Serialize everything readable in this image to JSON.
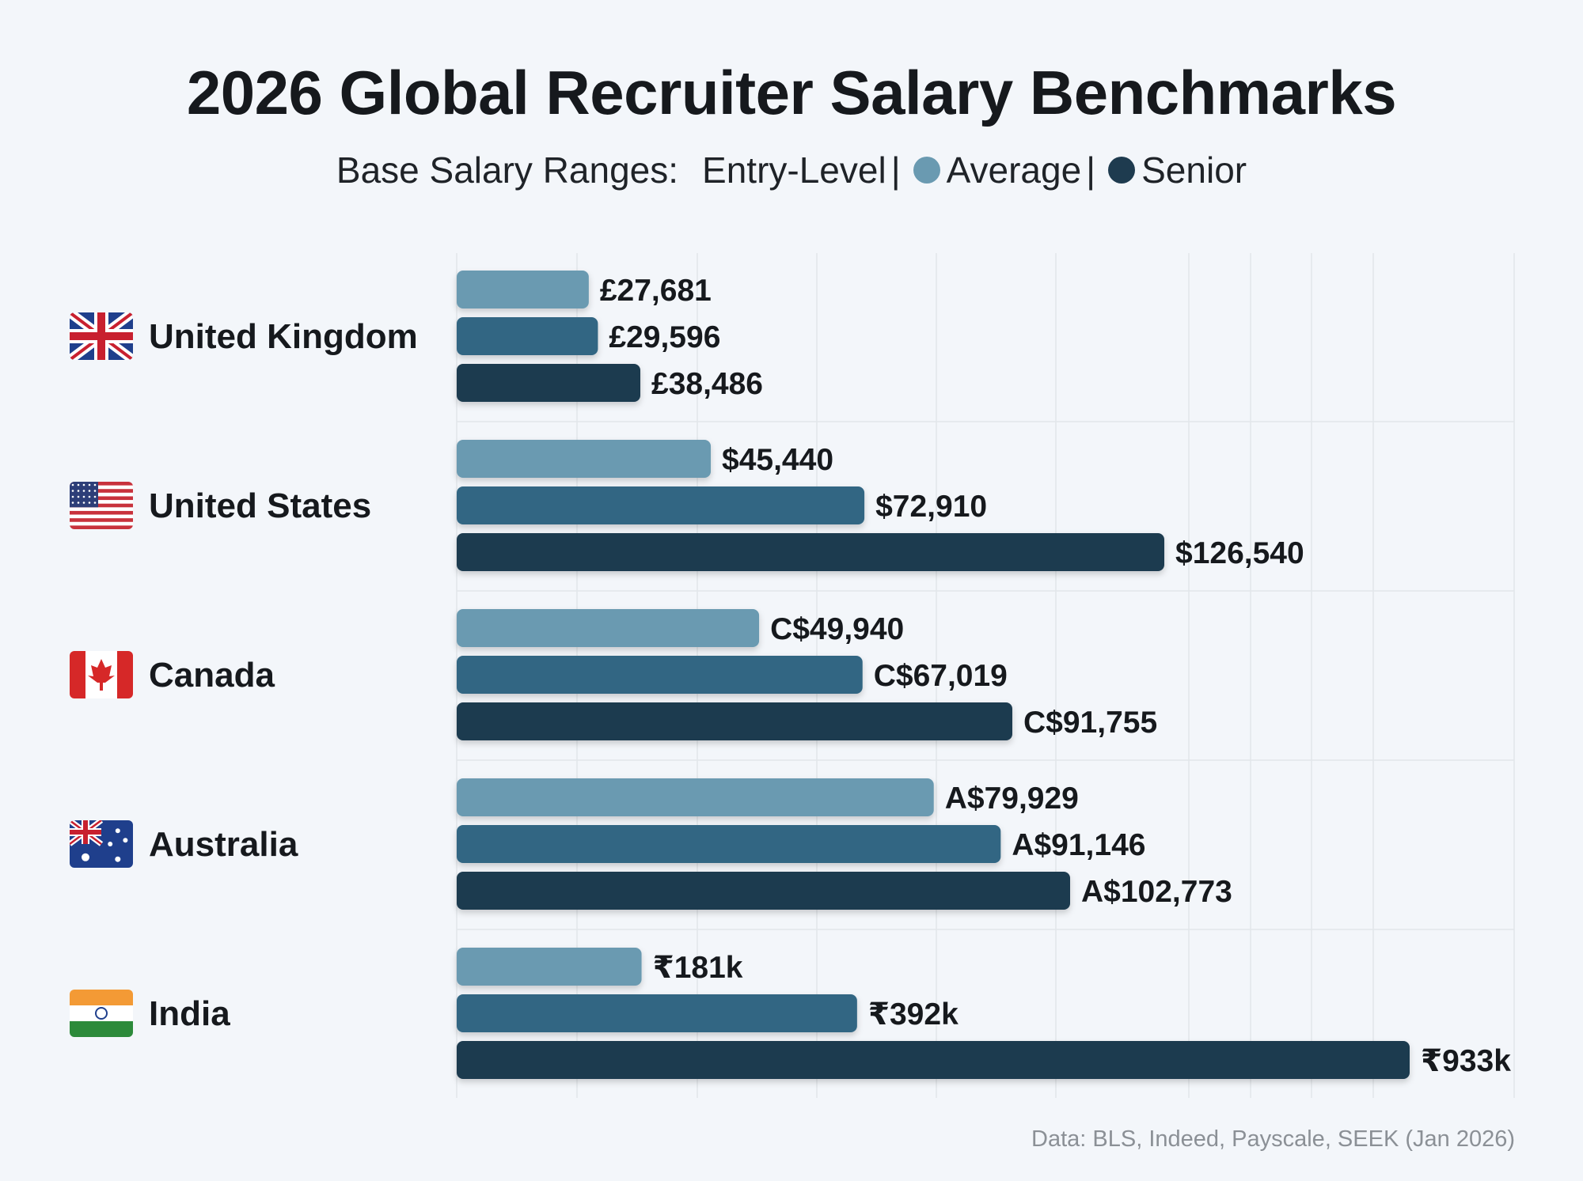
{
  "title": "2026 Global Recruiter Salary Benchmarks",
  "subtitle": {
    "prefix": "Base Salary Ranges:",
    "entry": "Entry-Level",
    "sep1": "|",
    "average": "Average",
    "sep2": "|",
    "senior": "Senior"
  },
  "source": "Data: BLS, Indeed, Payscale, SEEK (Jan 2026)",
  "colors": {
    "entry": "#6a9ab1",
    "average": "#316683",
    "senior": "#1e3b4f",
    "grid": "#e2e6ea"
  },
  "chart_data": {
    "type": "bar",
    "orientation": "horizontal",
    "grid": true,
    "categories": [
      "United Kingdom",
      "United States",
      "Canada",
      "Australia",
      "India"
    ],
    "flags": [
      "uk-flag",
      "us-flag",
      "canada-flag",
      "australia-flag",
      "india-flag"
    ],
    "series": [
      {
        "name": "Entry-Level",
        "values": [
          27681,
          45440,
          49940,
          79929,
          181000
        ],
        "labels": [
          "£27,681",
          "$45,440",
          "C$49,940",
          "A$79,929",
          "₹181k"
        ]
      },
      {
        "name": "Average",
        "values": [
          29596,
          72910,
          67019,
          91146,
          392000
        ],
        "labels": [
          "£29,596",
          "$72,910",
          "C$67,019",
          "A$91,146",
          "₹392k"
        ]
      },
      {
        "name": "Senior",
        "values": [
          38486,
          126540,
          91755,
          102773,
          933000
        ],
        "labels": [
          "£38,486",
          "$126,540",
          "C$91,755",
          "A$102,773",
          "₹933k"
        ]
      }
    ]
  }
}
